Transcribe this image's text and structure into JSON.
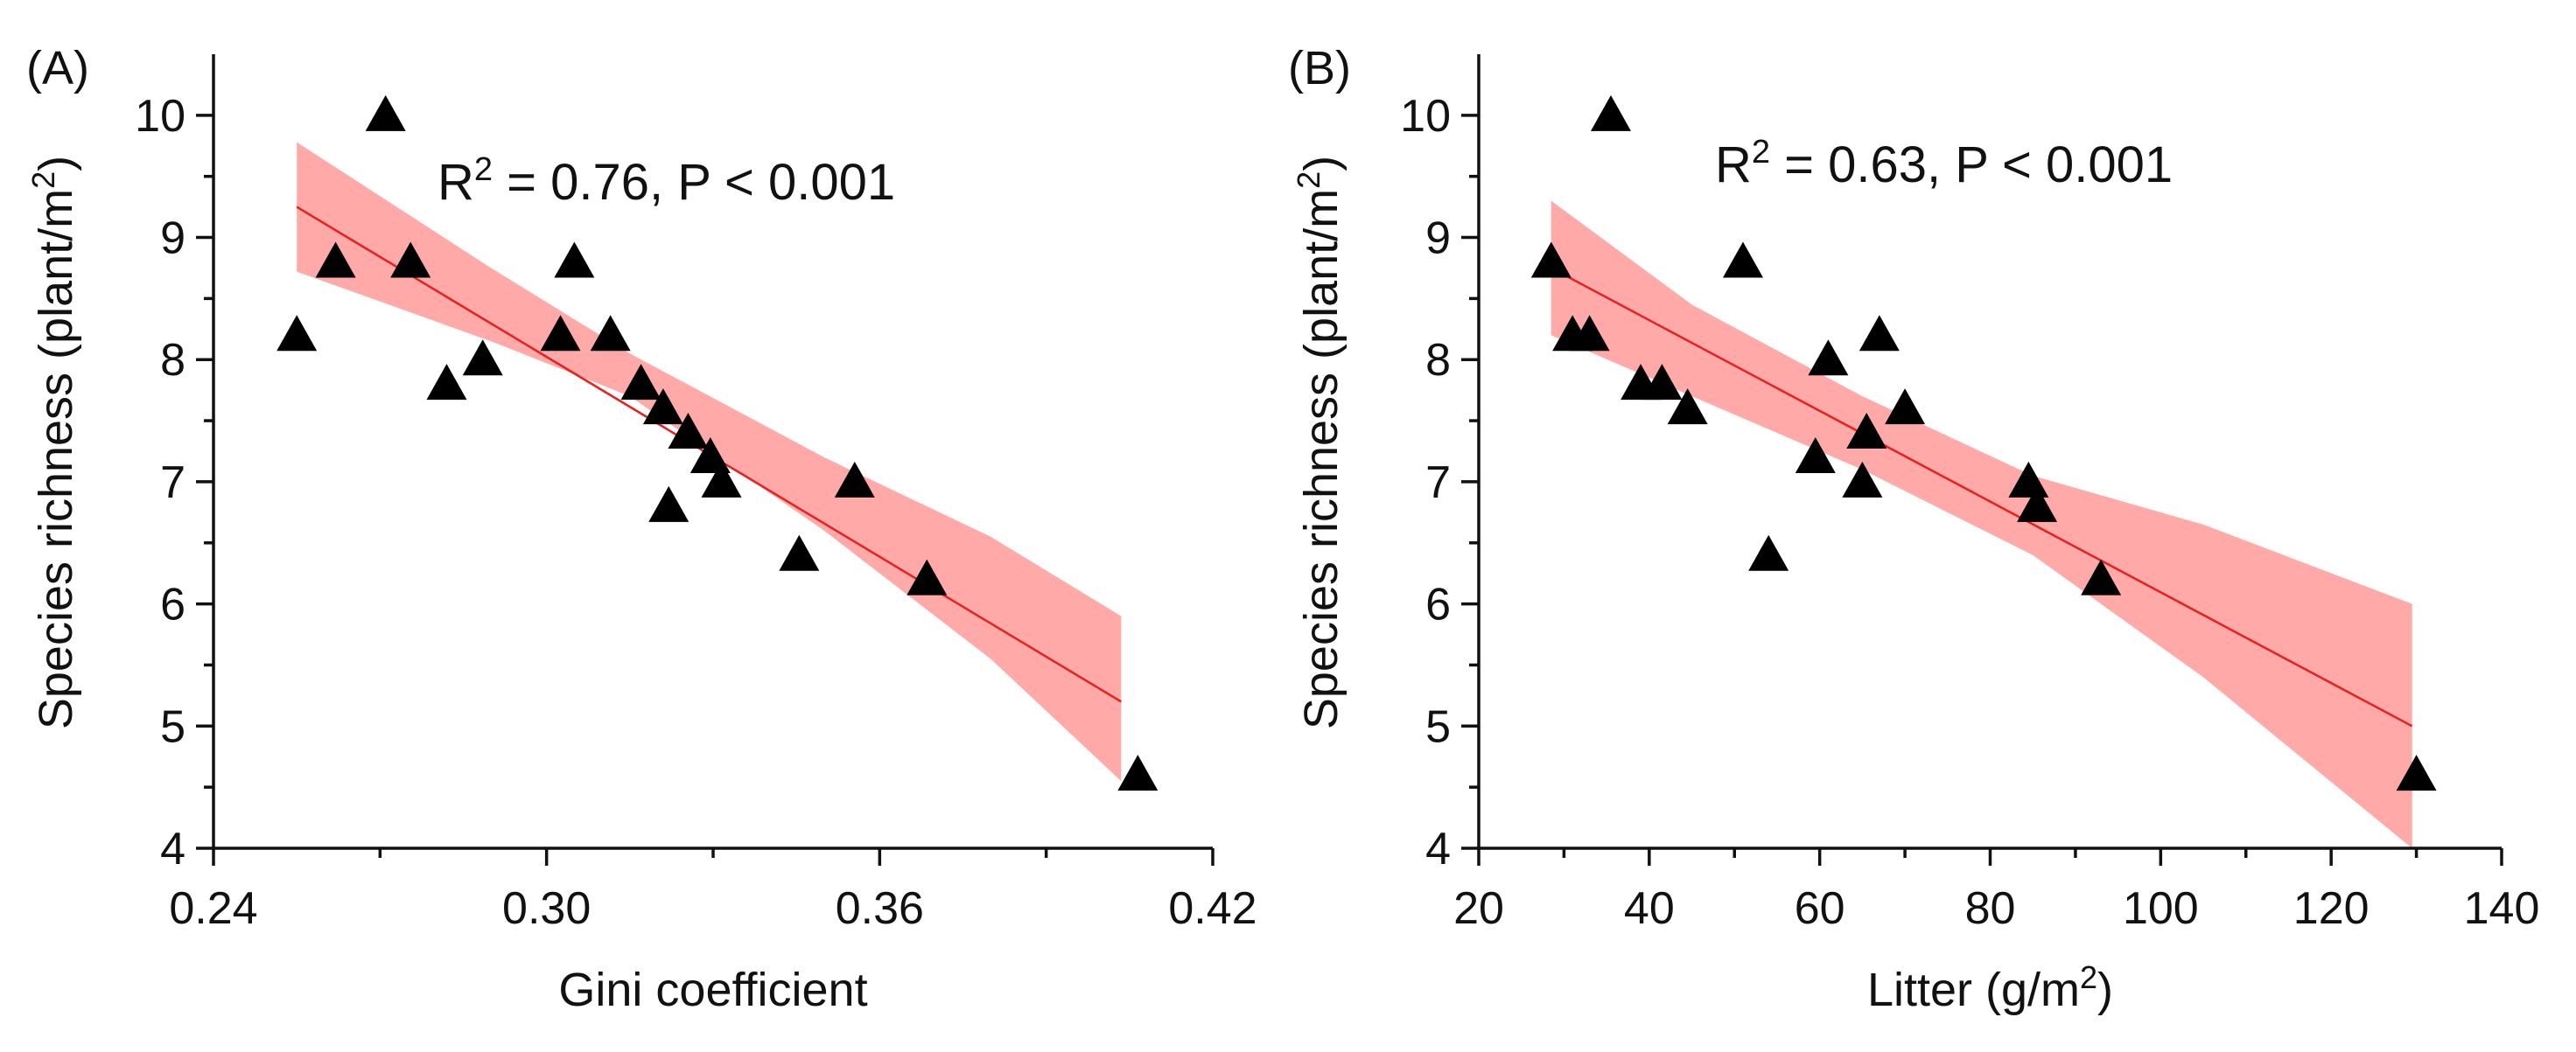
{
  "colors": {
    "band": "#ff9a9a",
    "fit_line": "#e8201e",
    "marker": "#000000",
    "axis": "#111111"
  },
  "chart_data": [
    {
      "type": "scatter",
      "panel_label": "(A)",
      "xlabel": "Gini coefficient",
      "ylabel": "Species richness (plant/m",
      "ylabel_sup": "2",
      "ylabel_tail": ")",
      "annotation": {
        "r_prefix": "R",
        "r_sup": "2",
        "text": " = 0.76, P < 0.001"
      },
      "xlim": [
        0.24,
        0.42
      ],
      "ylim": [
        4,
        10.5
      ],
      "xticks": [
        0.24,
        0.3,
        0.36,
        0.42
      ],
      "xtick_labels": [
        "0.24",
        "0.30",
        "0.36",
        "0.42"
      ],
      "xminor": [
        0.27,
        0.33,
        0.39
      ],
      "yticks": [
        4,
        5,
        6,
        7,
        8,
        9,
        10
      ],
      "ytick_labels": [
        "4",
        "5",
        "6",
        "7",
        "8",
        "9",
        "10"
      ],
      "points": [
        {
          "x": 0.255,
          "y": 8.2
        },
        {
          "x": 0.262,
          "y": 8.8
        },
        {
          "x": 0.271,
          "y": 10.0
        },
        {
          "x": 0.2755,
          "y": 8.8
        },
        {
          "x": 0.282,
          "y": 7.8
        },
        {
          "x": 0.2885,
          "y": 8.0
        },
        {
          "x": 0.3025,
          "y": 8.2
        },
        {
          "x": 0.305,
          "y": 8.8
        },
        {
          "x": 0.3115,
          "y": 8.2
        },
        {
          "x": 0.317,
          "y": 7.8
        },
        {
          "x": 0.321,
          "y": 7.6
        },
        {
          "x": 0.322,
          "y": 6.8
        },
        {
          "x": 0.3255,
          "y": 7.4
        },
        {
          "x": 0.3295,
          "y": 7.2
        },
        {
          "x": 0.3315,
          "y": 7.0
        },
        {
          "x": 0.3455,
          "y": 6.4
        },
        {
          "x": 0.3555,
          "y": 7.0
        },
        {
          "x": 0.3685,
          "y": 6.2
        },
        {
          "x": 0.4065,
          "y": 4.6
        }
      ],
      "fit": {
        "x": [
          0.255,
          0.4035
        ],
        "y": [
          9.25,
          5.2
        ]
      },
      "band_upper": [
        {
          "x": 0.255,
          "y": 9.78
        },
        {
          "x": 0.29,
          "y": 8.75
        },
        {
          "x": 0.315,
          "y": 8.05
        },
        {
          "x": 0.35,
          "y": 7.2
        },
        {
          "x": 0.38,
          "y": 6.55
        },
        {
          "x": 0.4035,
          "y": 5.9
        }
      ],
      "band_lower": [
        {
          "x": 0.255,
          "y": 8.72
        },
        {
          "x": 0.29,
          "y": 8.15
        },
        {
          "x": 0.315,
          "y": 7.7
        },
        {
          "x": 0.35,
          "y": 6.6
        },
        {
          "x": 0.38,
          "y": 5.55
        },
        {
          "x": 0.4035,
          "y": 4.55
        }
      ]
    },
    {
      "type": "scatter",
      "panel_label": "(B)",
      "xlabel": "Litter (g/m",
      "xlabel_sup": "2",
      "xlabel_tail": ")",
      "ylabel": "Species richness (plant/m",
      "ylabel_sup": "2",
      "ylabel_tail": ")",
      "annotation": {
        "r_prefix": "R",
        "r_sup": "2",
        "text": " = 0.63, P < 0.001"
      },
      "xlim": [
        20,
        140
      ],
      "ylim": [
        4,
        10.5
      ],
      "xticks": [
        20,
        40,
        60,
        80,
        100,
        120,
        140
      ],
      "xtick_labels": [
        "20",
        "40",
        "60",
        "80",
        "100",
        "120",
        "140"
      ],
      "xminor": [
        30,
        50,
        70,
        90,
        110,
        130
      ],
      "yticks": [
        4,
        5,
        6,
        7,
        8,
        9,
        10
      ],
      "ytick_labels": [
        "4",
        "5",
        "6",
        "7",
        "8",
        "9",
        "10"
      ],
      "points": [
        {
          "x": 28.5,
          "y": 8.8
        },
        {
          "x": 31.0,
          "y": 8.2
        },
        {
          "x": 33.0,
          "y": 8.2
        },
        {
          "x": 35.5,
          "y": 10.0
        },
        {
          "x": 39.0,
          "y": 7.8
        },
        {
          "x": 41.5,
          "y": 7.8
        },
        {
          "x": 44.5,
          "y": 7.6
        },
        {
          "x": 51.0,
          "y": 8.8
        },
        {
          "x": 54.0,
          "y": 6.4
        },
        {
          "x": 59.5,
          "y": 7.2
        },
        {
          "x": 61.0,
          "y": 8.0
        },
        {
          "x": 65.0,
          "y": 7.0
        },
        {
          "x": 65.5,
          "y": 7.4
        },
        {
          "x": 67.0,
          "y": 8.2
        },
        {
          "x": 70.0,
          "y": 7.6
        },
        {
          "x": 84.5,
          "y": 7.0
        },
        {
          "x": 85.5,
          "y": 6.8
        },
        {
          "x": 93.0,
          "y": 6.2
        },
        {
          "x": 130.0,
          "y": 4.6
        }
      ],
      "fit": {
        "x": [
          28.5,
          129.5
        ],
        "y": [
          8.75,
          5.0
        ]
      },
      "band_upper": [
        {
          "x": 28.5,
          "y": 9.3
        },
        {
          "x": 45,
          "y": 8.45
        },
        {
          "x": 65,
          "y": 7.7
        },
        {
          "x": 85,
          "y": 7.05
        },
        {
          "x": 105,
          "y": 6.65
        },
        {
          "x": 129.5,
          "y": 6.0
        }
      ],
      "band_lower": [
        {
          "x": 28.5,
          "y": 8.2
        },
        {
          "x": 45,
          "y": 7.7
        },
        {
          "x": 65,
          "y": 7.1
        },
        {
          "x": 85,
          "y": 6.4
        },
        {
          "x": 105,
          "y": 5.4
        },
        {
          "x": 129.5,
          "y": 4.0
        }
      ]
    }
  ]
}
